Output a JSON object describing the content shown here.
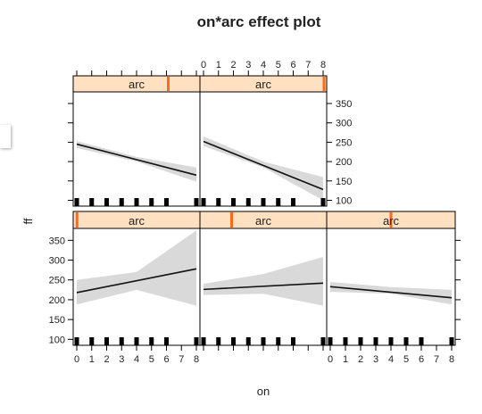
{
  "chart_data": {
    "type": "line",
    "title": "on*arc effect plot",
    "xlabel": "on",
    "ylabel": "ff",
    "xlim": [
      0,
      8
    ],
    "ylim": [
      85,
      380
    ],
    "xticks": [
      0,
      1,
      2,
      3,
      4,
      5,
      6,
      7,
      8
    ],
    "yticks": [
      100,
      150,
      200,
      250,
      300,
      350
    ],
    "strip_label": "arc",
    "rug": [
      0,
      1,
      2,
      3,
      4,
      5,
      6,
      8
    ],
    "panels": [
      {
        "row": "bottom",
        "col": 1,
        "arc_level": 0.03,
        "fit": [
          [
            0,
            218
          ],
          [
            8,
            278
          ]
        ],
        "band": [
          [
            0,
            188,
            250
          ],
          [
            4,
            225,
            270
          ],
          [
            8,
            185,
            375
          ]
        ]
      },
      {
        "row": "bottom",
        "col": 2,
        "arc_level": 0.25,
        "fit": [
          [
            0,
            226
          ],
          [
            8,
            242
          ]
        ],
        "band": [
          [
            0,
            212,
            240
          ],
          [
            4,
            215,
            265
          ],
          [
            8,
            185,
            308
          ]
        ]
      },
      {
        "row": "bottom",
        "col": 3,
        "arc_level": 0.5,
        "fit": [
          [
            0,
            233
          ],
          [
            8,
            205
          ]
        ],
        "band": [
          [
            0,
            220,
            245
          ],
          [
            4,
            215,
            232
          ],
          [
            8,
            188,
            225
          ]
        ]
      },
      {
        "row": "top",
        "col": 1,
        "arc_level": 0.75,
        "fit": [
          [
            0,
            245
          ],
          [
            8,
            165
          ]
        ],
        "band": [
          [
            0,
            235,
            253
          ],
          [
            4,
            200,
            212
          ],
          [
            8,
            148,
            185
          ]
        ]
      },
      {
        "row": "top",
        "col": 2,
        "arc_level": 1.0,
        "fit": [
          [
            0,
            252
          ],
          [
            8,
            128
          ]
        ],
        "band": [
          [
            0,
            240,
            265
          ],
          [
            4,
            185,
            200
          ],
          [
            8,
            100,
            160
          ]
        ]
      }
    ]
  },
  "colors": {
    "strip_fill": "#ffe0c0",
    "strip_marker": "#ff6a1a",
    "band": "#d9d9d9",
    "line": "#111111",
    "rug": "#000000"
  }
}
